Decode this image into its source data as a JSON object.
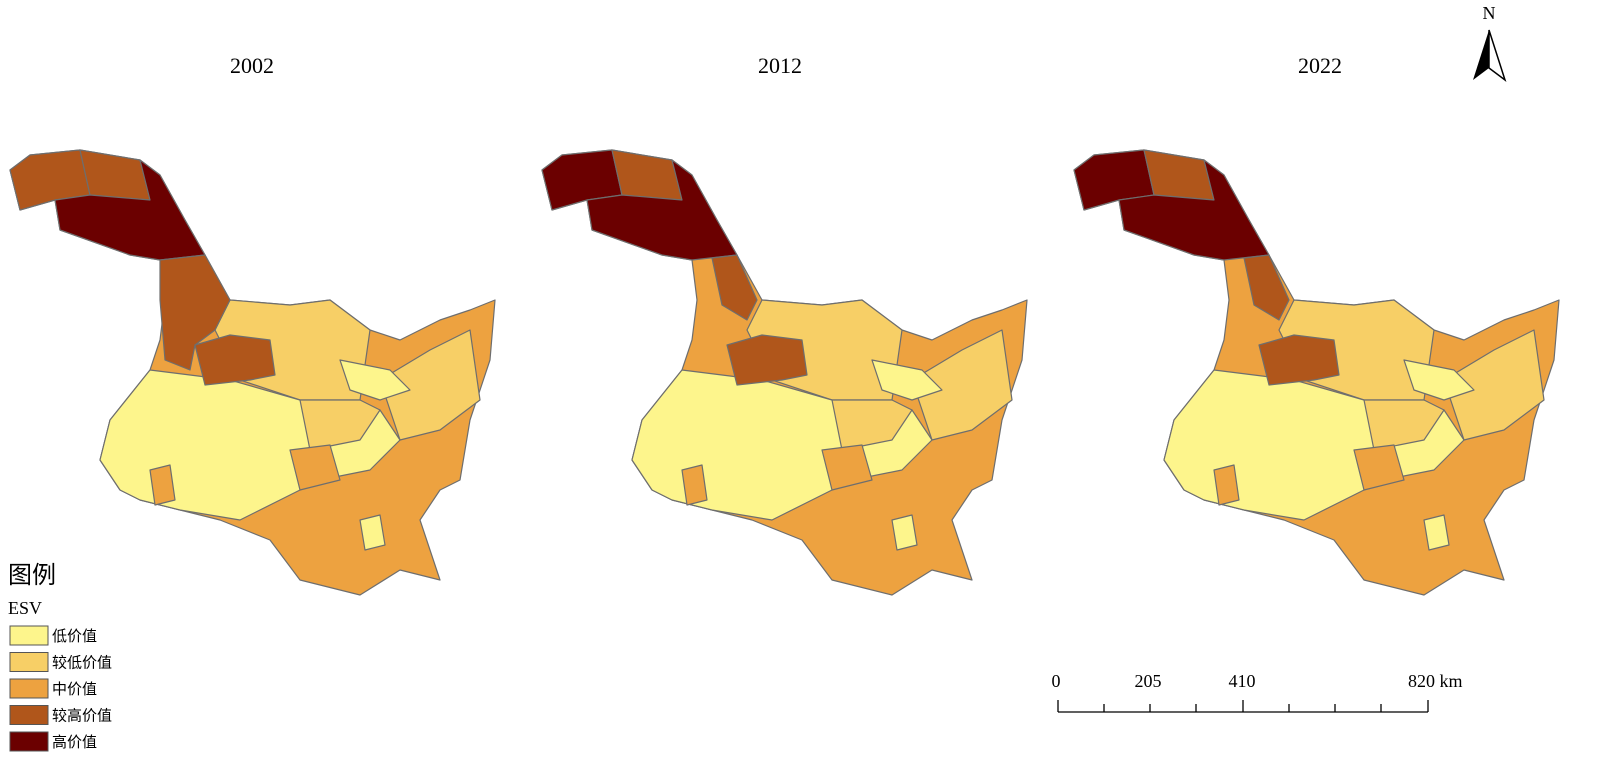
{
  "titles": [
    "2002",
    "2012",
    "2022"
  ],
  "north": "N",
  "legend": {
    "title": "图例",
    "field": "ESV",
    "items": [
      {
        "label": "低价值",
        "color": "#fdf58c"
      },
      {
        "label": "较低价值",
        "color": "#f7cf66"
      },
      {
        "label": "中价值",
        "color": "#eda240"
      },
      {
        "label": "较高价值",
        "color": "#b0561b"
      },
      {
        "label": "高价值",
        "color": "#6b0000"
      }
    ]
  },
  "scale_bar": {
    "labels": [
      "0",
      "205",
      "410",
      "820 km"
    ]
  }
}
